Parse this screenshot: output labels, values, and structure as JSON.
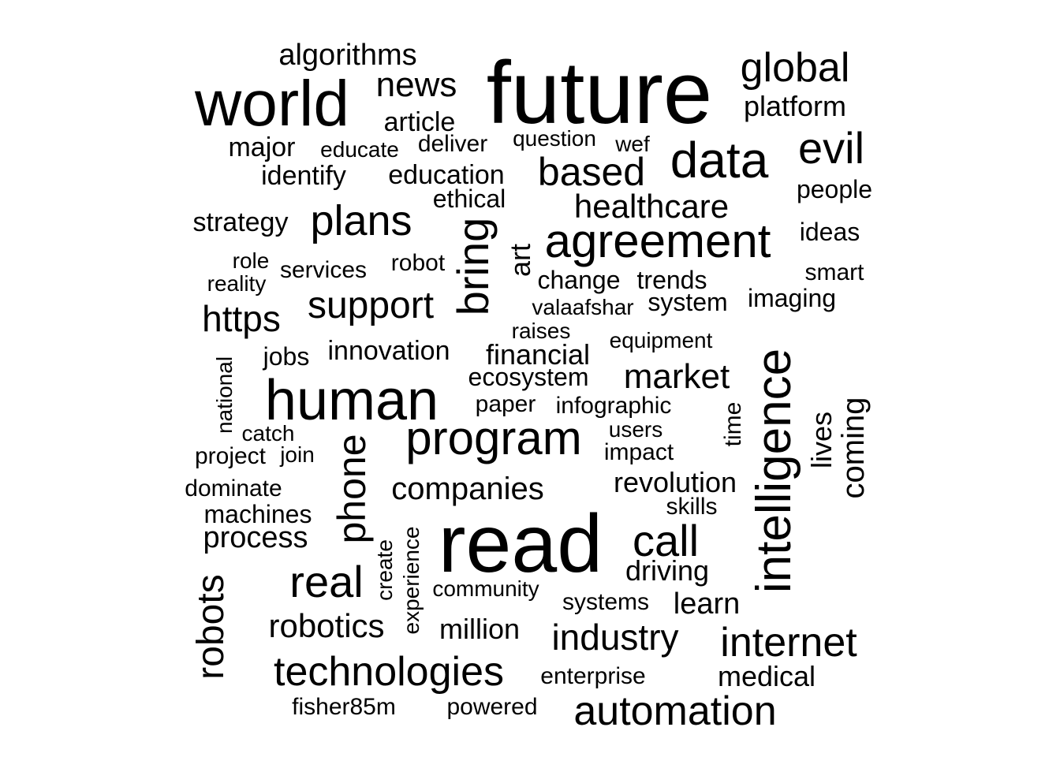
{
  "colors": {
    "background": "#ffffff",
    "text": "#000000"
  },
  "words": [
    "future",
    "read",
    "world",
    "human",
    "intelligence",
    "agreement",
    "program",
    "data",
    "global",
    "evil",
    "bring",
    "plans",
    "based",
    "support",
    "news",
    "phone",
    "call",
    "real",
    "technologies",
    "automation",
    "internet",
    "industry",
    "robots",
    "market",
    "healthcare",
    "https",
    "robotics",
    "companies",
    "algorithms",
    "article",
    "platform",
    "financial",
    "process",
    "innovation",
    "revolution",
    "coming",
    "medical",
    "education",
    "driving",
    "learn",
    "million",
    "lives",
    "ecosystem",
    "art",
    "major",
    "identify",
    "strategy",
    "people",
    "ideas",
    "change",
    "trends",
    "system",
    "imaging",
    "infographic",
    "users",
    "impact",
    "skills",
    "enterprise",
    "ethical",
    "deliver",
    "educate",
    "question",
    "wef",
    "role",
    "services",
    "robot",
    "reality",
    "smart",
    "valaafshar",
    "raises",
    "equipment",
    "jobs",
    "national",
    "paper",
    "catch",
    "project",
    "join",
    "time",
    "dominate",
    "machines",
    "community",
    "systems",
    "experience",
    "create",
    "fisher85m",
    "powered"
  ]
}
